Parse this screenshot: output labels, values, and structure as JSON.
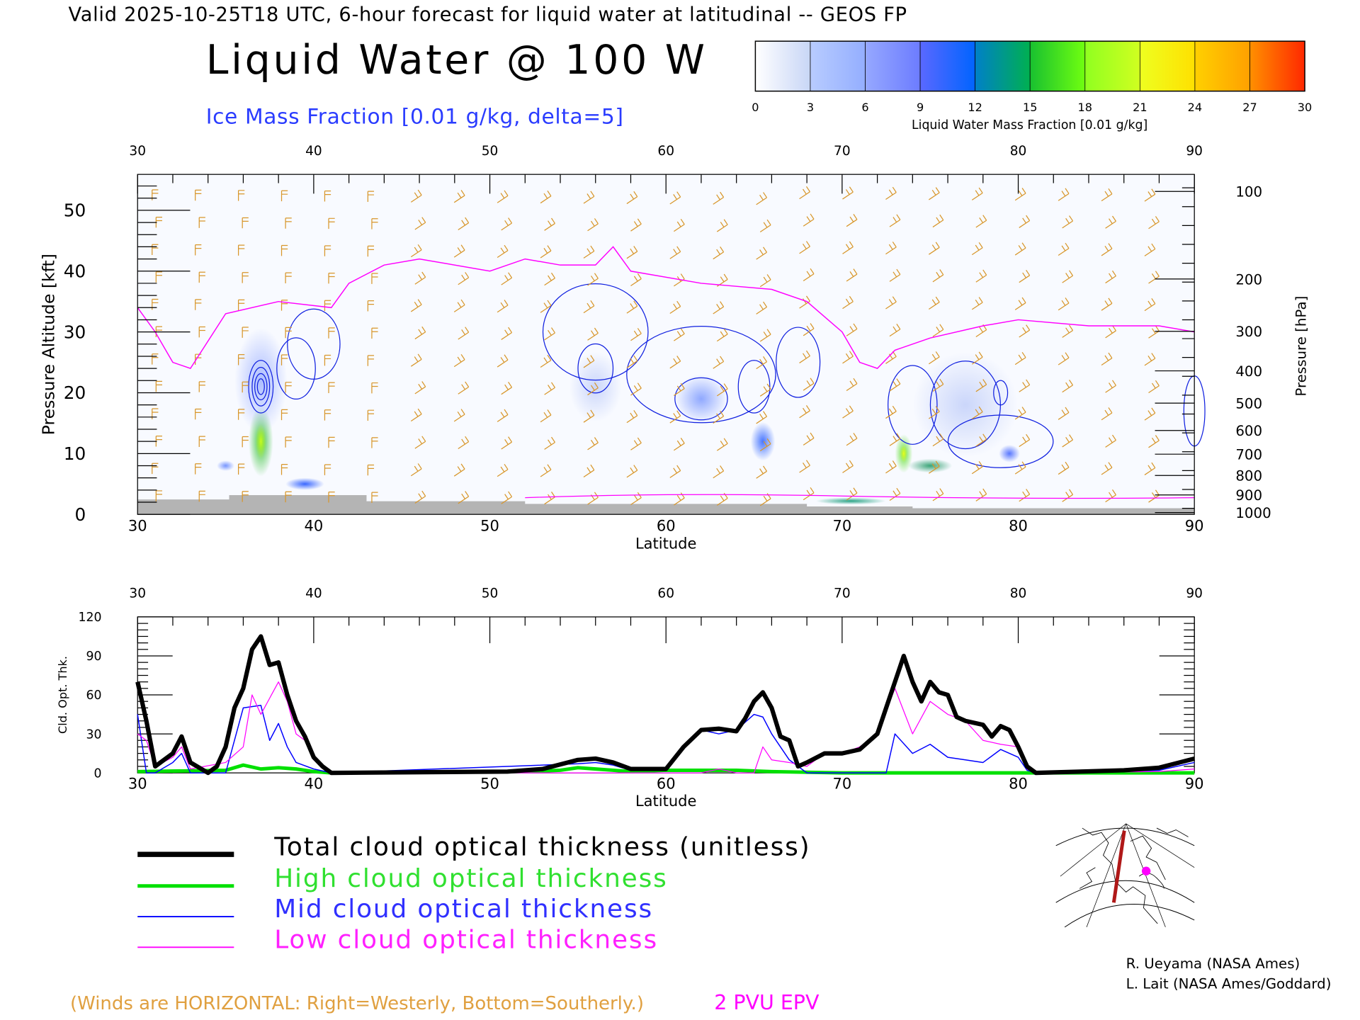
{
  "header": {
    "valid_line": "Valid 2025-10-25T18 UTC, 6-hour forecast for liquid water at latitudinal -- GEOS FP",
    "title": "Liquid Water @ 100 W",
    "ice_label": "Ice Mass Fraction [0.01 g/kg, delta=5]"
  },
  "colorbar": {
    "ticks": [
      "0",
      "3",
      "6",
      "9",
      "12",
      "15",
      "18",
      "21",
      "24",
      "27",
      "30"
    ],
    "label": "Liquid Water Mass Fraction [0.01 g/kg]",
    "colors": [
      [
        "#ffffff",
        "#c8d6f6"
      ],
      [
        "#b8ccff",
        "#94aeff"
      ],
      [
        "#96a8ff",
        "#6c7cff"
      ],
      [
        "#5a68ff",
        "#0064ff"
      ],
      [
        "#0080c8",
        "#00b050"
      ],
      [
        "#18c030",
        "#70ff10"
      ],
      [
        "#90ff20",
        "#d0ff20"
      ],
      [
        "#eeff20",
        "#ffe000"
      ],
      [
        "#ffd000",
        "#ffa000"
      ],
      [
        "#ff9000",
        "#ff2800"
      ]
    ]
  },
  "chart_data": [
    {
      "type": "heatmap",
      "title": "Liquid Water @ 100 W",
      "xlabel": "Latitude",
      "ylabel": "Pressure Altitude [kft]",
      "y2label": "Pressure [hPa]",
      "xlim": [
        30,
        90
      ],
      "ylim": [
        0,
        56
      ],
      "x_ticks": [
        "30",
        "40",
        "50",
        "60",
        "70",
        "80",
        "90"
      ],
      "y_ticks": [
        "0",
        "10",
        "20",
        "30",
        "40",
        "50"
      ],
      "pressure_ticks": [
        "100",
        "200",
        "300",
        "400",
        "500",
        "600",
        "700",
        "800",
        "900",
        "1000"
      ],
      "pressure_kft": [
        53.1,
        38.7,
        30.1,
        23.6,
        18.3,
        13.8,
        9.9,
        6.4,
        3.2,
        0.3
      ],
      "epv_2pvu_kft": [
        [
          30,
          34
        ],
        [
          31,
          30
        ],
        [
          32,
          25
        ],
        [
          33,
          24
        ],
        [
          35,
          33
        ],
        [
          38,
          35
        ],
        [
          41,
          34
        ],
        [
          42,
          38
        ],
        [
          44,
          41
        ],
        [
          46,
          42
        ],
        [
          50,
          40
        ],
        [
          52,
          42
        ],
        [
          54,
          41
        ],
        [
          56,
          41
        ],
        [
          57,
          44
        ],
        [
          58,
          40
        ],
        [
          62,
          38
        ],
        [
          66,
          37
        ],
        [
          68,
          35
        ],
        [
          70,
          30
        ],
        [
          71,
          25
        ],
        [
          72,
          24
        ],
        [
          73,
          27
        ],
        [
          75,
          29
        ],
        [
          78,
          31
        ],
        [
          80,
          32
        ],
        [
          84,
          31
        ],
        [
          88,
          31
        ],
        [
          90,
          30
        ]
      ],
      "liquid_water_maxima": [
        {
          "lat": 37,
          "kft": 12,
          "value": 18
        },
        {
          "lat": 39.5,
          "kft": 5,
          "value": 15
        },
        {
          "lat": 73.5,
          "kft": 10,
          "value": 18
        },
        {
          "lat": 75,
          "kft": 8,
          "value": 14
        },
        {
          "lat": 70.5,
          "kft": 2,
          "value": 14
        },
        {
          "lat": 65.5,
          "kft": 12,
          "value": 9
        },
        {
          "lat": 79.5,
          "kft": 10,
          "value": 9
        }
      ]
    },
    {
      "type": "line",
      "xlabel": "Latitude",
      "ylabel": "Cld. Opt. Thk.",
      "xlim": [
        30,
        90
      ],
      "ylim": [
        0,
        120
      ],
      "x_ticks": [
        "30",
        "40",
        "50",
        "60",
        "70",
        "80",
        "90"
      ],
      "y_ticks": [
        "0",
        "30",
        "60",
        "90",
        "120"
      ],
      "series": [
        {
          "name": "Total cloud optical thickness (unitless)",
          "color": "#000000",
          "points": [
            [
              30,
              70
            ],
            [
              30.5,
              40
            ],
            [
              31,
              5
            ],
            [
              31.5,
              10
            ],
            [
              32,
              15
            ],
            [
              32.5,
              28
            ],
            [
              33,
              8
            ],
            [
              34,
              0
            ],
            [
              34.5,
              5
            ],
            [
              35,
              20
            ],
            [
              35.5,
              50
            ],
            [
              36,
              65
            ],
            [
              36.5,
              95
            ],
            [
              37,
              105
            ],
            [
              37.5,
              83
            ],
            [
              38,
              85
            ],
            [
              38.5,
              60
            ],
            [
              39,
              40
            ],
            [
              39.5,
              28
            ],
            [
              40,
              12
            ],
            [
              40.5,
              5
            ],
            [
              41,
              0
            ],
            [
              51,
              1
            ],
            [
              53,
              3
            ],
            [
              55,
              10
            ],
            [
              56,
              11
            ],
            [
              57,
              8
            ],
            [
              58,
              3
            ],
            [
              60,
              3
            ],
            [
              61,
              20
            ],
            [
              62,
              33
            ],
            [
              63,
              34
            ],
            [
              64,
              32
            ],
            [
              64.5,
              42
            ],
            [
              65,
              55
            ],
            [
              65.5,
              62
            ],
            [
              66,
              50
            ],
            [
              66.5,
              28
            ],
            [
              67,
              25
            ],
            [
              67.5,
              5
            ],
            [
              68,
              8
            ],
            [
              69,
              15
            ],
            [
              70,
              15
            ],
            [
              71,
              18
            ],
            [
              72,
              30
            ],
            [
              72.5,
              50
            ],
            [
              73,
              70
            ],
            [
              73.5,
              90
            ],
            [
              74,
              70
            ],
            [
              74.5,
              55
            ],
            [
              75,
              70
            ],
            [
              75.5,
              62
            ],
            [
              76,
              60
            ],
            [
              76.5,
              43
            ],
            [
              77,
              40
            ],
            [
              78,
              37
            ],
            [
              78.5,
              28
            ],
            [
              79,
              36
            ],
            [
              79.5,
              33
            ],
            [
              80,
              20
            ],
            [
              80.5,
              5
            ],
            [
              81,
              0
            ],
            [
              86,
              2
            ],
            [
              88,
              4
            ],
            [
              90,
              11
            ]
          ]
        },
        {
          "name": "High cloud optical thickness",
          "color": "#00e000",
          "points": [
            [
              30,
              1
            ],
            [
              35,
              2
            ],
            [
              36,
              6
            ],
            [
              37,
              3
            ],
            [
              38,
              4
            ],
            [
              39,
              3
            ],
            [
              40,
              1
            ],
            [
              41,
              0
            ],
            [
              52,
              1
            ],
            [
              54,
              2
            ],
            [
              55,
              4
            ],
            [
              56,
              3
            ],
            [
              57,
              2
            ],
            [
              58,
              1
            ],
            [
              60,
              2
            ],
            [
              62,
              2
            ],
            [
              64,
              2
            ],
            [
              66,
              1
            ],
            [
              70,
              0
            ],
            [
              90,
              0
            ]
          ]
        },
        {
          "name": "Mid cloud optical thickness",
          "color": "#0000ff",
          "points": [
            [
              30,
              45
            ],
            [
              30.5,
              0
            ],
            [
              31,
              0
            ],
            [
              32,
              8
            ],
            [
              32.5,
              15
            ],
            [
              33,
              0
            ],
            [
              35,
              0
            ],
            [
              36,
              50
            ],
            [
              37,
              52
            ],
            [
              37.5,
              25
            ],
            [
              38,
              38
            ],
            [
              38.5,
              20
            ],
            [
              39,
              8
            ],
            [
              40,
              3
            ],
            [
              41,
              0
            ],
            [
              55,
              7
            ],
            [
              56,
              8
            ],
            [
              57,
              6
            ],
            [
              58,
              2
            ],
            [
              60,
              2
            ],
            [
              61,
              20
            ],
            [
              62,
              33
            ],
            [
              63,
              30
            ],
            [
              64,
              33
            ],
            [
              65,
              45
            ],
            [
              65.5,
              43
            ],
            [
              66,
              30
            ],
            [
              66.5,
              20
            ],
            [
              67,
              10
            ],
            [
              68,
              0
            ],
            [
              72.5,
              0
            ],
            [
              73,
              30
            ],
            [
              74,
              15
            ],
            [
              75,
              22
            ],
            [
              76,
              12
            ],
            [
              77,
              10
            ],
            [
              78,
              8
            ],
            [
              79,
              18
            ],
            [
              80,
              12
            ],
            [
              80.5,
              2
            ],
            [
              81,
              0
            ],
            [
              88,
              2
            ],
            [
              90,
              8
            ]
          ]
        },
        {
          "name": "Low cloud optical thickness",
          "color": "#ff00ff",
          "points": [
            [
              30,
              30
            ],
            [
              30.5,
              25
            ],
            [
              31,
              5
            ],
            [
              32,
              12
            ],
            [
              32.5,
              20
            ],
            [
              33,
              3
            ],
            [
              35,
              8
            ],
            [
              36,
              20
            ],
            [
              36.5,
              60
            ],
            [
              37,
              45
            ],
            [
              38,
              70
            ],
            [
              38.5,
              55
            ],
            [
              39,
              30
            ],
            [
              39.5,
              25
            ],
            [
              40,
              10
            ],
            [
              41,
              0
            ],
            [
              62,
              0
            ],
            [
              63,
              3
            ],
            [
              64,
              0
            ],
            [
              65,
              0
            ],
            [
              65.5,
              20
            ],
            [
              66,
              10
            ],
            [
              67,
              8
            ],
            [
              68,
              5
            ],
            [
              69,
              15
            ],
            [
              70,
              15
            ],
            [
              71,
              20
            ],
            [
              72,
              30
            ],
            [
              73,
              65
            ],
            [
              74,
              30
            ],
            [
              75,
              55
            ],
            [
              76,
              45
            ],
            [
              77,
              40
            ],
            [
              78,
              25
            ],
            [
              79,
              22
            ],
            [
              80,
              20
            ],
            [
              80.5,
              3
            ],
            [
              81,
              0
            ],
            [
              88,
              1
            ],
            [
              90,
              3
            ]
          ]
        }
      ]
    }
  ],
  "legend": [
    {
      "label": "Total cloud optical thickness (unitless)",
      "color": "#000000",
      "text_color": "#000000"
    },
    {
      "label": "High cloud optical thickness",
      "color": "#00e000",
      "text_color": "#30e030"
    },
    {
      "label": "Mid cloud optical thickness",
      "color": "#0000ff",
      "text_color": "#3030ff"
    },
    {
      "label": "Low cloud optical thickness",
      "color": "#ff00ff",
      "text_color": "#ff20ff"
    }
  ],
  "footer": {
    "winds_note": "(Winds are HORIZONTAL: Right=Westerly, Bottom=Southerly.)",
    "epv_label": "2 PVU EPV",
    "credit1": "R. Ueyama (NASA Ames)",
    "credit2": "L. Lait (NASA Ames/Goddard)"
  }
}
